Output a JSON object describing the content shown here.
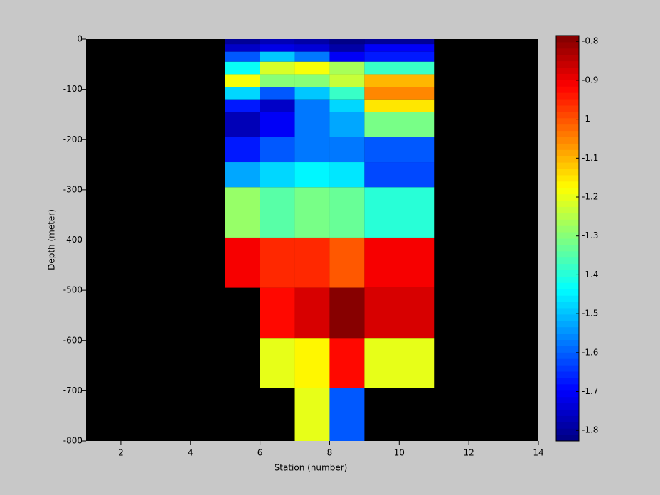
{
  "chart_data": {
    "type": "heatmap",
    "xlabel": "Station (number)",
    "ylabel": "Depth (meter)",
    "x_edges": [
      5,
      6,
      7,
      8,
      9,
      11
    ],
    "y_edges": [
      0,
      -10,
      -25,
      -45,
      -70,
      -95,
      -120,
      -145,
      -195,
      -245,
      -295,
      -395,
      -495,
      -595,
      -695,
      -800
    ],
    "values": [
      [
        -1.8,
        -1.77,
        -1.79,
        -1.82,
        -1.8
      ],
      [
        -1.76,
        -1.72,
        -1.74,
        -1.79,
        -1.71
      ],
      [
        -1.6,
        -1.5,
        -1.58,
        -1.7,
        -1.68
      ],
      [
        -1.42,
        -1.22,
        -1.18,
        -1.27,
        -1.38
      ],
      [
        -1.18,
        -1.3,
        -1.3,
        -1.24,
        -1.1
      ],
      [
        -1.47,
        -1.6,
        -1.5,
        -1.38,
        -1.05
      ],
      [
        -1.68,
        -1.75,
        -1.57,
        -1.47,
        -1.15
      ],
      [
        -1.77,
        -1.71,
        -1.57,
        -1.52,
        -1.32
      ],
      [
        -1.68,
        -1.6,
        -1.57,
        -1.57,
        -1.6
      ],
      [
        -1.52,
        -1.48,
        -1.45,
        -1.46,
        -1.63
      ],
      [
        -1.28,
        -1.34,
        -1.31,
        -1.33,
        -1.4
      ],
      [
        -0.9,
        -0.95,
        -0.95,
        -1.0,
        -0.9
      ],
      [
        null,
        -0.92,
        -0.88,
        -0.8,
        -0.87
      ],
      [
        null,
        -1.2,
        -1.17,
        -0.93,
        -1.2
      ],
      [
        null,
        null,
        -1.2,
        -1.6,
        null
      ]
    ],
    "xlim": [
      1,
      14
    ],
    "xticks": [
      2,
      4,
      6,
      8,
      10,
      12,
      14
    ],
    "ylim": [
      -800,
      0
    ],
    "yticks": [
      0,
      -100,
      -200,
      -300,
      -400,
      -500,
      -600,
      -700,
      -800
    ],
    "colormap": "jet",
    "clim": [
      -1.827,
      -0.785
    ],
    "cticks": [
      -0.8,
      -0.9,
      -1,
      -1.1,
      -1.2,
      -1.3,
      -1.4,
      -1.5,
      -1.6,
      -1.7,
      -1.8
    ],
    "background": "#000000"
  }
}
